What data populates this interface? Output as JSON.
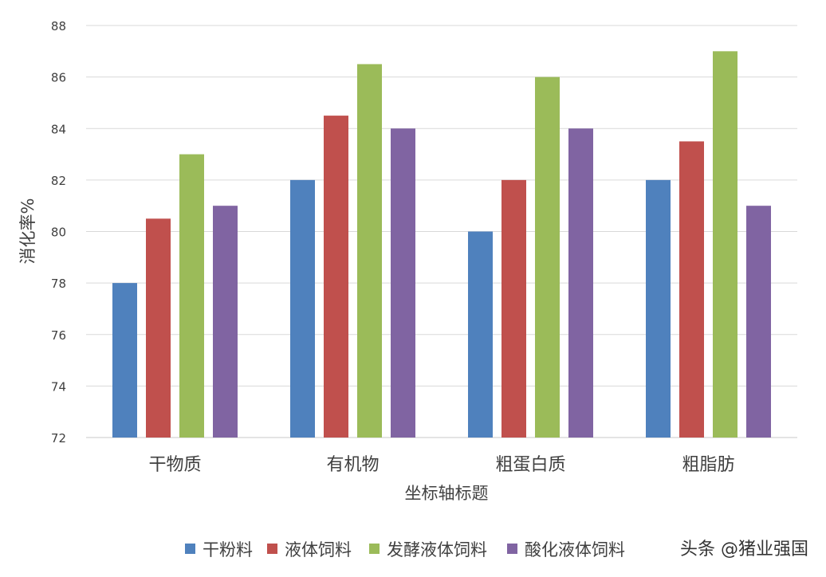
{
  "chart_data": {
    "type": "bar",
    "categories": [
      "干物质",
      "有机物",
      "粗蛋白质",
      "粗脂肪"
    ],
    "series": [
      {
        "name": "干粉料",
        "values": [
          78,
          82,
          80,
          82
        ]
      },
      {
        "name": "液体饲料",
        "values": [
          80.5,
          84.5,
          82,
          83.5
        ]
      },
      {
        "name": "发酵液体饲料",
        "values": [
          83,
          86.5,
          86,
          87
        ]
      },
      {
        "name": "酸化液体饲料",
        "values": [
          81,
          84,
          84,
          81
        ]
      }
    ],
    "xlabel": "坐标轴标题",
    "ylabel": "消化率%",
    "ylim": [
      72,
      88
    ],
    "yticks": [
      "72",
      "74",
      "76",
      "78",
      "80",
      "82",
      "84",
      "86",
      "88"
    ],
    "grid": true,
    "legend": "bottom",
    "colors": [
      "#4f81bd",
      "#c0504d",
      "#9bbb59",
      "#8064a2"
    ]
  },
  "watermark": {
    "text": "头条 @猪业强国"
  }
}
